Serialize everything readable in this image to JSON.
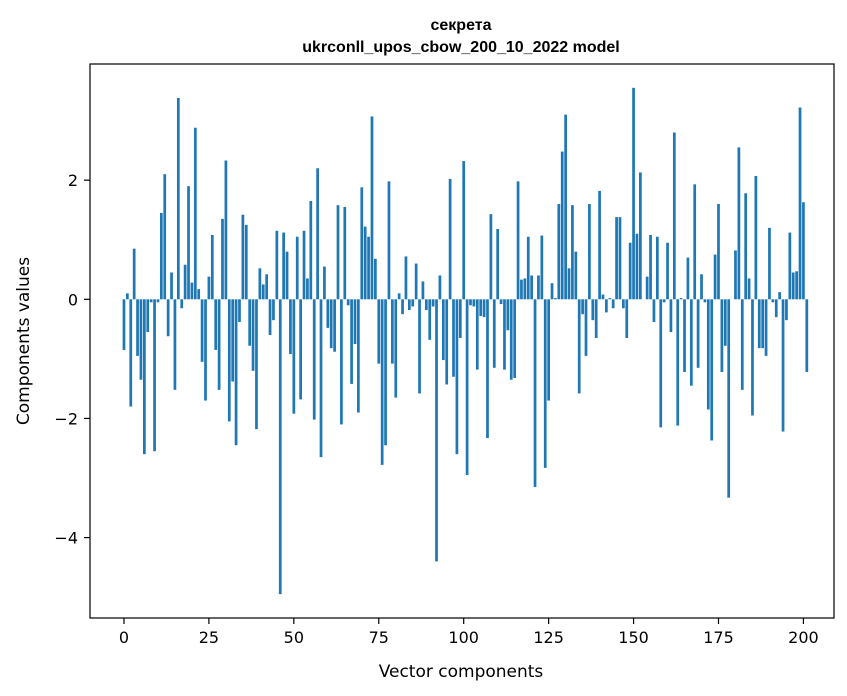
{
  "chart_data": {
    "type": "bar",
    "title_line1": "секрета",
    "title_line2": "ukrconll_upos_cbow_200_10_2022 model",
    "xlabel": "Vector components",
    "ylabel": "Components values",
    "xlim": [
      -10,
      209
    ],
    "ylim": [
      -5.35,
      3.95
    ],
    "xticks": [
      0,
      25,
      50,
      75,
      100,
      125,
      150,
      175,
      200
    ],
    "yticks": [
      -4,
      -2,
      0,
      2
    ],
    "grid": false,
    "bar_color": "#1f77b4",
    "values": [
      -0.85,
      0.1,
      -1.8,
      0.85,
      -0.95,
      -1.35,
      -2.6,
      -0.55,
      -0.05,
      -2.55,
      -0.05,
      1.45,
      2.1,
      -0.62,
      0.45,
      -1.52,
      3.38,
      -0.15,
      0.58,
      1.9,
      0.28,
      2.88,
      0.17,
      -1.05,
      -1.7,
      0.38,
      1.08,
      -0.85,
      -1.52,
      1.35,
      2.33,
      -2.05,
      -1.38,
      -2.45,
      -0.38,
      1.42,
      1.25,
      -0.78,
      -1.2,
      -2.18,
      0.52,
      0.25,
      0.42,
      -0.6,
      -0.35,
      1.15,
      -4.95,
      1.12,
      0.8,
      -0.92,
      -1.92,
      1.05,
      -1.68,
      1.15,
      0.35,
      1.65,
      -2.02,
      2.2,
      -2.65,
      0.55,
      -0.48,
      -0.82,
      -0.88,
      1.58,
      -2.1,
      1.55,
      -0.1,
      -1.42,
      -0.75,
      -1.9,
      1.88,
      1.22,
      1.05,
      3.07,
      0.68,
      -1.08,
      -2.78,
      -2.45,
      1.98,
      -1.08,
      -1.65,
      0.1,
      -0.25,
      0.72,
      -0.18,
      -0.12,
      0.6,
      -1.58,
      0.3,
      -0.18,
      -0.68,
      -0.12,
      -4.4,
      0.4,
      -1.02,
      -1.43,
      2.02,
      -1.3,
      -2.6,
      -0.65,
      2.32,
      -2.95,
      -0.1,
      -0.12,
      -1.18,
      -0.28,
      -0.3,
      -2.33,
      1.43,
      -1.15,
      1.18,
      -0.08,
      -1.18,
      -0.52,
      -1.35,
      -1.32,
      1.98,
      0.33,
      0.35,
      1.05,
      0.4,
      -3.15,
      0.4,
      1.07,
      -2.83,
      -1.7,
      0.27,
      0.02,
      1.6,
      2.48,
      3.1,
      0.52,
      1.58,
      0.8,
      -1.58,
      -0.25,
      -0.95,
      1.6,
      -0.35,
      -0.65,
      1.82,
      0.08,
      -0.22,
      0.02,
      -0.15,
      1.38,
      1.38,
      -0.15,
      -0.65,
      0.95,
      3.55,
      1.1,
      2.13,
      0.0,
      0.38,
      1.08,
      -0.38,
      1.05,
      -2.15,
      -0.05,
      0.95,
      -0.55,
      2.8,
      -2.12,
      0.02,
      -1.22,
      0.7,
      -1.45,
      1.93,
      -1.15,
      0.42,
      -0.05,
      -1.85,
      -2.37,
      0.75,
      1.6,
      -1.22,
      -0.78,
      -3.33,
      0.0,
      0.82,
      2.55,
      -1.52,
      1.78,
      0.35,
      -1.95,
      2.07,
      -0.82,
      -0.82,
      -0.95,
      1.2,
      -0.05,
      -0.3,
      0.12,
      -2.22,
      -0.35,
      1.12,
      0.45,
      0.47,
      3.22,
      1.63,
      -1.22
    ]
  }
}
